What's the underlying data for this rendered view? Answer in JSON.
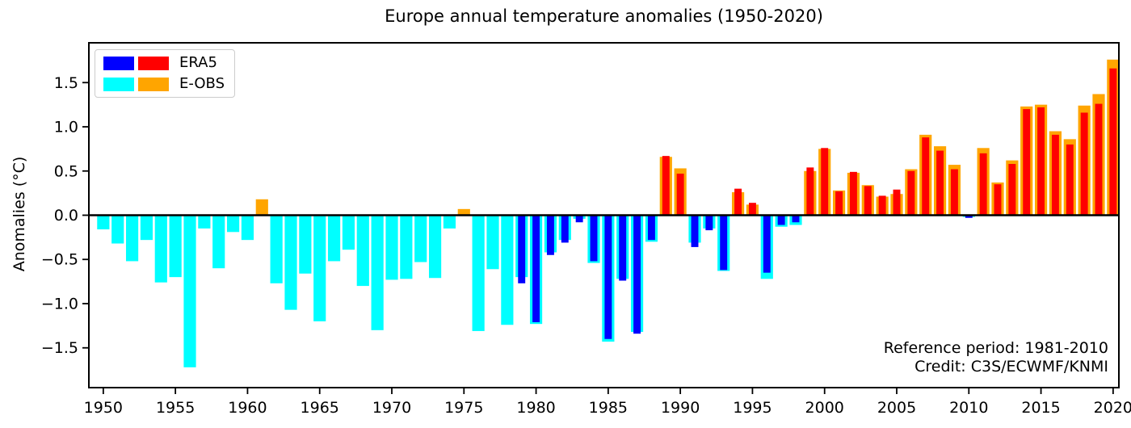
{
  "title": "Europe annual temperature anomalies (1950-2020)",
  "ylabel": "Anomalies (°C)",
  "legend": {
    "items": [
      {
        "label": "ERA5",
        "colors": [
          "#0000ff",
          "#ff0000"
        ]
      },
      {
        "label": "E-OBS",
        "colors": [
          "#00ffff",
          "#ffa500"
        ]
      }
    ]
  },
  "annotation": {
    "line1": "Reference period: 1981-2010",
    "line2": "Credit: C3S/ECWMF/KNMI"
  },
  "chart_data": {
    "type": "bar",
    "title": "Europe annual temperature anomalies (1950-2020)",
    "xlabel": "",
    "ylabel": "Anomalies (°C)",
    "xlim": [
      1949.0,
      2020.4
    ],
    "ylim": [
      -1.95,
      1.95
    ],
    "yticks": [
      -1.5,
      -1.0,
      -0.5,
      0.0,
      0.5,
      1.0,
      1.5
    ],
    "xticks": [
      1950,
      1955,
      1960,
      1965,
      1970,
      1975,
      1980,
      1985,
      1990,
      1995,
      2000,
      2005,
      2010,
      2015,
      2020
    ],
    "grid": false,
    "legend_position": "upper left",
    "zero_line": true,
    "years": [
      1950,
      1951,
      1952,
      1953,
      1954,
      1955,
      1956,
      1957,
      1958,
      1959,
      1960,
      1961,
      1962,
      1963,
      1964,
      1965,
      1966,
      1967,
      1968,
      1969,
      1970,
      1971,
      1972,
      1973,
      1974,
      1975,
      1976,
      1977,
      1978,
      1979,
      1980,
      1981,
      1982,
      1983,
      1984,
      1985,
      1986,
      1987,
      1988,
      1989,
      1990,
      1991,
      1992,
      1993,
      1994,
      1995,
      1996,
      1997,
      1998,
      1999,
      2000,
      2001,
      2002,
      2003,
      2004,
      2005,
      2006,
      2007,
      2008,
      2009,
      2010,
      2011,
      2012,
      2013,
      2014,
      2015,
      2016,
      2017,
      2018,
      2019,
      2020
    ],
    "series": [
      {
        "name": "ERA5",
        "neg_color": "#0000ff",
        "pos_color": "#ff0000",
        "bar_rel_width": 0.5,
        "values": [
          null,
          null,
          null,
          null,
          null,
          null,
          null,
          null,
          null,
          null,
          null,
          null,
          null,
          null,
          null,
          null,
          null,
          null,
          null,
          null,
          null,
          null,
          null,
          null,
          null,
          null,
          null,
          null,
          null,
          -0.77,
          -1.21,
          -0.45,
          -0.31,
          -0.08,
          -0.52,
          -1.4,
          -0.74,
          -1.34,
          -0.28,
          0.67,
          0.47,
          -0.36,
          -0.17,
          -0.62,
          0.3,
          0.14,
          -0.65,
          -0.11,
          -0.08,
          0.54,
          0.76,
          0.27,
          0.49,
          0.33,
          0.22,
          0.29,
          0.5,
          0.88,
          0.73,
          0.52,
          -0.03,
          0.7,
          0.35,
          0.58,
          1.2,
          1.22,
          0.91,
          0.8,
          1.16,
          1.26,
          1.66
        ]
      },
      {
        "name": "E-OBS",
        "neg_color": "#00ffff",
        "pos_color": "#ffa500",
        "bar_rel_width": 0.85,
        "values": [
          -0.16,
          -0.32,
          -0.52,
          -0.28,
          -0.76,
          -0.7,
          -1.72,
          -0.15,
          -0.6,
          -0.19,
          -0.28,
          0.18,
          -0.77,
          -1.07,
          -0.66,
          -1.2,
          -0.52,
          -0.39,
          -0.8,
          -1.3,
          -0.73,
          -0.72,
          -0.53,
          -0.71,
          -0.15,
          0.07,
          -1.31,
          -0.61,
          -1.24,
          -0.7,
          -1.23,
          -0.42,
          -0.28,
          -0.04,
          -0.54,
          -1.43,
          -0.72,
          -1.32,
          -0.3,
          0.66,
          0.53,
          -0.31,
          -0.15,
          -0.63,
          0.26,
          0.12,
          -0.72,
          -0.13,
          -0.11,
          0.5,
          0.75,
          0.28,
          0.48,
          0.34,
          0.21,
          0.24,
          0.52,
          0.91,
          0.78,
          0.57,
          -0.02,
          0.76,
          0.37,
          0.62,
          1.23,
          1.25,
          0.95,
          0.86,
          1.24,
          1.37,
          1.76
        ]
      }
    ],
    "annotations": [
      "Reference period: 1981-2010",
      "Credit: C3S/ECWMF/KNMI"
    ]
  }
}
